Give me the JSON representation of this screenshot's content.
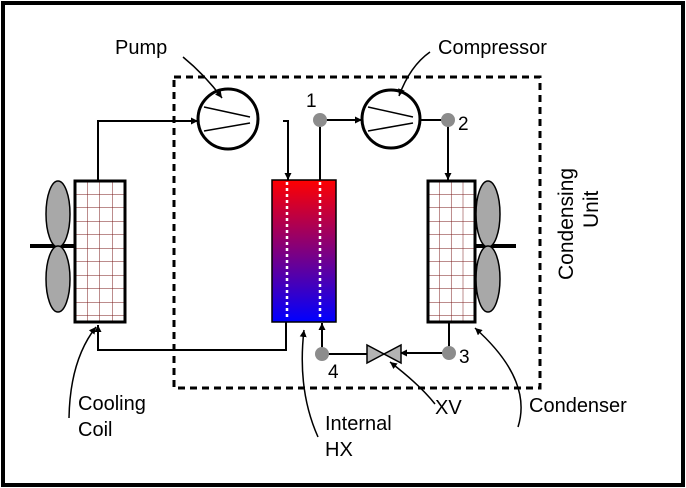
{
  "labels": {
    "pump": "Pump",
    "compressor": "Compressor",
    "condensing_unit_line1": "Condensing",
    "condensing_unit_line2": "Unit",
    "cooling_coil_line1": "Cooling",
    "cooling_coil_line2": "Coil",
    "internal_hx_line1": "Internal",
    "internal_hx_line2": "HX",
    "xv": "XV",
    "condenser": "Condenser"
  },
  "state_points": [
    "1",
    "2",
    "3",
    "4"
  ],
  "colors": {
    "line": "#000000",
    "coil_grid": "#7a1a1a",
    "fan_blade": "#a8a8a8",
    "state_point": "#8c8c8c",
    "hx_hot": "#ff0000",
    "hx_cold": "#0000ff"
  }
}
